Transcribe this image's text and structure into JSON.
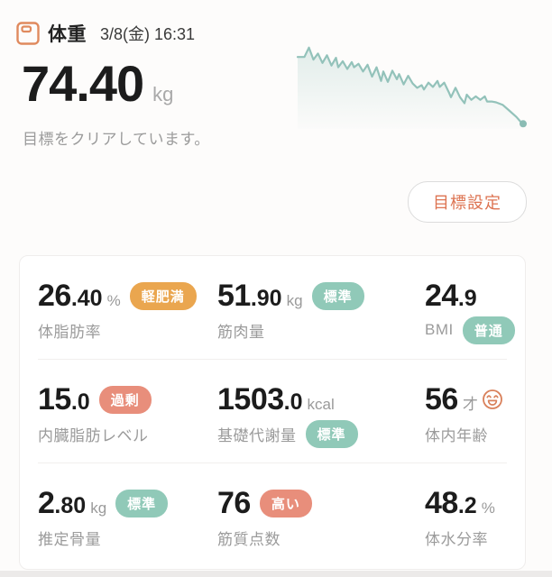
{
  "header": {
    "title": "体重",
    "datetime": "3/8(金) 16:31",
    "value": "74.40",
    "unit": "kg",
    "status_message": "目標をクリアしています。"
  },
  "goal_button": {
    "label": "目標設定"
  },
  "colors": {
    "accent_orange": "#dd7351",
    "badge_orange": "#eaa64f",
    "badge_teal": "#90c9b8",
    "badge_salmon": "#e88e7b",
    "chart_line": "#93c2ba",
    "text_dark": "#1c1c1c",
    "text_gray": "#9b9b9b"
  },
  "chart": {
    "type": "area-sparkline",
    "description": "weight trend, jagged downward line with end dot",
    "points": [
      [
        0,
        16
      ],
      [
        3,
        16
      ],
      [
        5,
        5
      ],
      [
        7,
        19
      ],
      [
        9,
        12
      ],
      [
        11,
        23
      ],
      [
        13,
        14
      ],
      [
        15,
        26
      ],
      [
        17,
        17
      ],
      [
        18,
        28
      ],
      [
        20,
        21
      ],
      [
        22,
        30
      ],
      [
        24,
        22
      ],
      [
        25,
        28
      ],
      [
        27,
        24
      ],
      [
        29,
        33
      ],
      [
        31,
        25
      ],
      [
        33,
        39
      ],
      [
        35,
        28
      ],
      [
        37,
        44
      ],
      [
        38,
        33
      ],
      [
        40,
        45
      ],
      [
        42,
        32
      ],
      [
        44,
        42
      ],
      [
        45,
        36
      ],
      [
        47,
        48
      ],
      [
        49,
        38
      ],
      [
        51,
        47
      ],
      [
        53,
        52
      ],
      [
        55,
        49
      ],
      [
        56,
        54
      ],
      [
        58,
        46
      ],
      [
        60,
        51
      ],
      [
        62,
        44
      ],
      [
        63,
        51
      ],
      [
        65,
        46
      ],
      [
        67,
        57
      ],
      [
        68,
        63
      ],
      [
        70,
        52
      ],
      [
        72,
        63
      ],
      [
        74,
        70
      ],
      [
        75,
        60
      ],
      [
        77,
        66
      ],
      [
        79,
        62
      ],
      [
        81,
        66
      ],
      [
        83,
        62
      ],
      [
        84,
        68
      ],
      [
        86,
        68
      ],
      [
        88,
        69
      ],
      [
        91,
        72
      ],
      [
        94,
        79
      ],
      [
        97,
        86
      ],
      [
        99,
        92
      ],
      [
        100,
        94
      ]
    ]
  },
  "metrics": [
    {
      "value_int": "26",
      "value_dec": ".40",
      "unit": "%",
      "badge": "軽肥満",
      "label": "体脂肪率"
    },
    {
      "value_int": "51",
      "value_dec": ".90",
      "unit": "kg",
      "badge": "標準",
      "label": "筋肉量"
    },
    {
      "value_int": "24",
      "value_dec": ".9",
      "unit": "",
      "badge": "普通",
      "label": "BMI"
    },
    {
      "value_int": "15",
      "value_dec": ".0",
      "unit": "",
      "badge": "過剰",
      "label": "内臓脂肪レベル"
    },
    {
      "value_int": "1503",
      "value_dec": ".0",
      "unit": "kcal",
      "badge": "標準",
      "label": "基礎代謝量"
    },
    {
      "value_int": "56",
      "value_dec": "",
      "unit": "才",
      "badge": "",
      "label": "体内年齢"
    },
    {
      "value_int": "2",
      "value_dec": ".80",
      "unit": "kg",
      "badge": "標準",
      "label": "推定骨量"
    },
    {
      "value_int": "76",
      "value_dec": "",
      "unit": "",
      "badge": "高い",
      "label": "筋質点数"
    },
    {
      "value_int": "48",
      "value_dec": ".2",
      "unit": "%",
      "badge": "",
      "label": "体水分率"
    }
  ]
}
